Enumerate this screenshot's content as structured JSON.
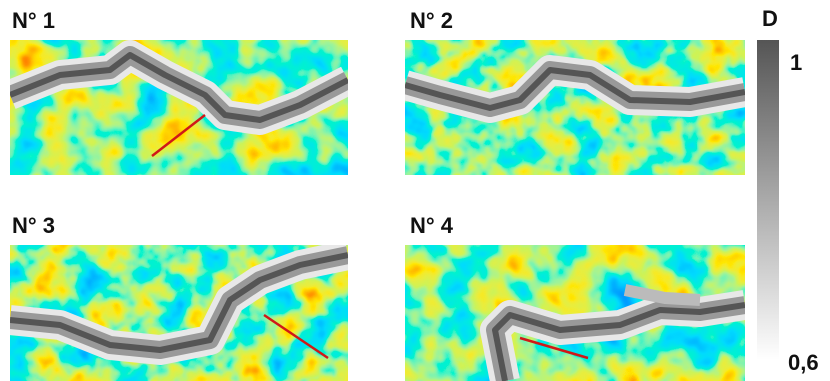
{
  "panels": [
    {
      "label": "N° 1"
    },
    {
      "label": "N° 2"
    },
    {
      "label": "N° 3"
    },
    {
      "label": "N° 4"
    }
  ],
  "colorbar": {
    "title": "D",
    "top_label": "1",
    "bottom_label": "0,6"
  }
}
